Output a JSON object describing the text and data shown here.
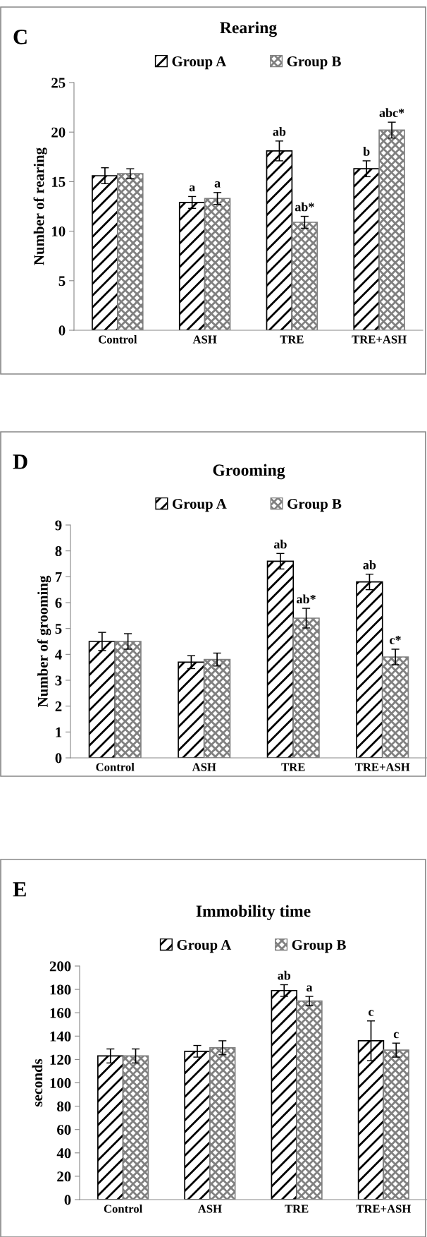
{
  "chart_data": [
    {
      "type": "bar",
      "title": "Rearing",
      "ylabel": "Number of rearing",
      "annotations": [
        "C"
      ],
      "categories": [
        "Control",
        "ASH",
        "TRE",
        "TRE+ASH"
      ],
      "series": [
        {
          "name": "Group A",
          "color": "#000000",
          "values": [
            15.6,
            12.9,
            18.1,
            16.3
          ],
          "errors": [
            0.8,
            0.6,
            1.0,
            0.8
          ],
          "value_labels": [
            null,
            "a",
            "ab",
            "b"
          ]
        },
        {
          "name": "Group B",
          "color": "#808080",
          "values": [
            15.8,
            13.3,
            10.9,
            20.2
          ],
          "errors": [
            0.5,
            0.6,
            0.6,
            0.8
          ],
          "value_labels": [
            null,
            "a",
            "ab*",
            "abc*"
          ]
        }
      ],
      "ylim": [
        0,
        25
      ],
      "yticks": [
        0,
        5,
        10,
        15,
        20,
        25
      ],
      "legend": "top",
      "grid": false
    },
    {
      "type": "bar",
      "title": "Grooming",
      "ylabel": "Number of grooming",
      "annotations": [
        "D"
      ],
      "categories": [
        "Control",
        "ASH",
        "TRE",
        "TRE+ASH"
      ],
      "series": [
        {
          "name": "Group A",
          "color": "#000000",
          "values": [
            4.5,
            3.7,
            7.6,
            6.8
          ],
          "errors": [
            0.35,
            0.25,
            0.3,
            0.3
          ],
          "value_labels": [
            null,
            null,
            "ab",
            "ab"
          ]
        },
        {
          "name": "Group B",
          "color": "#808080",
          "values": [
            4.5,
            3.8,
            5.4,
            3.9
          ],
          "errors": [
            0.3,
            0.25,
            0.38,
            0.3
          ],
          "value_labels": [
            null,
            null,
            "ab*",
            "c*"
          ]
        }
      ],
      "ylim": [
        0,
        9
      ],
      "yticks": [
        0,
        1,
        2,
        3,
        4,
        5,
        6,
        7,
        8,
        9
      ],
      "legend": "top",
      "grid": false
    },
    {
      "type": "bar",
      "title": "Immobility time",
      "ylabel": "seconds",
      "annotations": [
        "E"
      ],
      "categories": [
        "Control",
        "ASH",
        "TRE",
        "TRE+ASH"
      ],
      "series": [
        {
          "name": "Group A",
          "color": "#000000",
          "values": [
            123,
            127,
            179,
            136
          ],
          "errors": [
            6,
            5,
            5,
            17
          ],
          "value_labels": [
            null,
            null,
            "ab",
            "c"
          ]
        },
        {
          "name": "Group B",
          "color": "#808080",
          "values": [
            123,
            130,
            170,
            128
          ],
          "errors": [
            6,
            6,
            4,
            6
          ],
          "value_labels": [
            null,
            null,
            "a",
            "c"
          ]
        }
      ],
      "ylim": [
        0,
        200
      ],
      "yticks": [
        0,
        20,
        40,
        60,
        80,
        100,
        120,
        140,
        160,
        180,
        200
      ],
      "legend": "top",
      "grid": false
    }
  ]
}
